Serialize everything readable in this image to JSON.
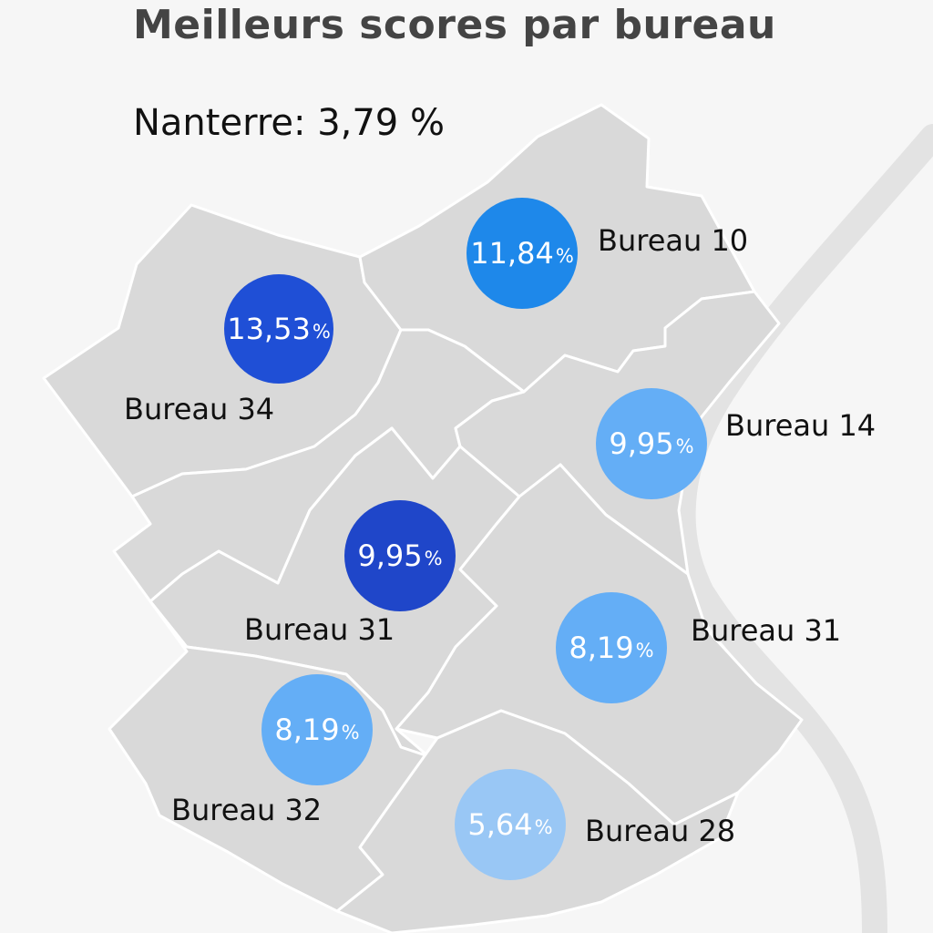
{
  "title": "Meilleurs scores par bureau",
  "subtitle": "Nanterre: 3,79 %",
  "colors": {
    "background": "#f6f6f6",
    "district_fill": "#d9d9d9",
    "district_border": "#ffffff",
    "river": "#e3e3e3",
    "scale_dark": "#1f49cf",
    "scale_mid": "#1e88ea",
    "scale_light": "#64aef6",
    "scale_lightest": "#99c7f5"
  },
  "markers": [
    {
      "id": "bureau-34",
      "label": "Bureau 34",
      "value": "13,53",
      "unit": "%",
      "color": "#1f4fd6"
    },
    {
      "id": "bureau-10",
      "label": "Bureau 10",
      "value": "11,84",
      "unit": "%",
      "color": "#1e88ea"
    },
    {
      "id": "bureau-14",
      "label": "Bureau 14",
      "value": "9,95",
      "unit": "%",
      "color": "#64aef6"
    },
    {
      "id": "bureau-31-west",
      "label": "Bureau 31",
      "value": "9,95",
      "unit": "%",
      "color": "#1f46c9"
    },
    {
      "id": "bureau-31-east",
      "label": "Bureau 31",
      "value": "8,19",
      "unit": "%",
      "color": "#64aef6"
    },
    {
      "id": "bureau-32",
      "label": "Bureau 32",
      "value": "8,19",
      "unit": "%",
      "color": "#64aef6"
    },
    {
      "id": "bureau-28",
      "label": "Bureau 28",
      "value": "5,64",
      "unit": "%",
      "color": "#99c7f5"
    }
  ]
}
